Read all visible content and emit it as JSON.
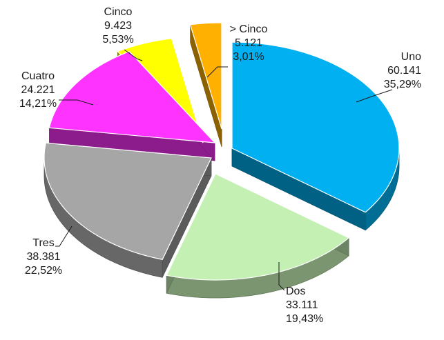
{
  "chart_data": {
    "type": "pie",
    "title": "",
    "categories": [
      "Uno",
      "Dos",
      "Tres",
      "Cuatro",
      "Cinco",
      "> Cinco"
    ],
    "values": [
      60141,
      33111,
      38381,
      24221,
      9423,
      5121
    ],
    "value_labels": [
      "60.141",
      "33.111",
      "38.381",
      "24.221",
      "9.423",
      "5.121"
    ],
    "percent_labels": [
      "35,29%",
      "19,43%",
      "22,52%",
      "14,21%",
      "5,53%",
      "3,01%"
    ],
    "colors": [
      "#00b0f0",
      "#c4f0b4",
      "#a6a6a6",
      "#ff33ff",
      "#ffff00",
      "#ffb000"
    ],
    "style": "3d-exploded",
    "legend": "none",
    "data_labels": "category, value, percent"
  }
}
